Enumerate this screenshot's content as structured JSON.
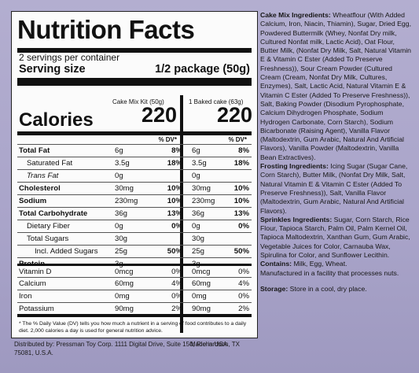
{
  "panel": {
    "title": "Nutrition Facts",
    "servings": "2 servings per container",
    "serving_size_label": "Serving size",
    "serving_size_value": "1/2 package (50g)",
    "col1_header": "Cake Mix Kit (50g)",
    "col2_header": "1 Baked cake (63g)",
    "calories_label": "Calories",
    "calories_col1": "220",
    "calories_col2": "220",
    "dv_header": "% DV*",
    "rows": [
      {
        "label": "Total Fat",
        "c1": "6g",
        "d1": "8%",
        "c2": "6g",
        "d2": "8%"
      },
      {
        "label": "Saturated Fat",
        "c1": "3.5g",
        "d1": "18%",
        "c2": "3.5g",
        "d2": "18%"
      },
      {
        "label": "Trans Fat",
        "c1": "0g",
        "d1": "",
        "c2": "0g",
        "d2": ""
      },
      {
        "label": "Cholesterol",
        "c1": "30mg",
        "d1": "10%",
        "c2": "30mg",
        "d2": "10%"
      },
      {
        "label": "Sodium",
        "c1": "230mg",
        "d1": "10%",
        "c2": "230mg",
        "d2": "10%"
      },
      {
        "label": "Total Carbohydrate",
        "c1": "36g",
        "d1": "13%",
        "c2": "36g",
        "d2": "13%"
      },
      {
        "label": "Dietary Fiber",
        "c1": "0g",
        "d1": "0%",
        "c2": "0g",
        "d2": "0%"
      },
      {
        "label": "Total Sugars",
        "c1": "30g",
        "d1": "",
        "c2": "30g",
        "d2": ""
      },
      {
        "label": "Incl. Added Sugars",
        "c1": "25g",
        "d1": "50%",
        "c2": "25g",
        "d2": "50%"
      },
      {
        "label": "Protein",
        "c1": "3g",
        "d1": "",
        "c2": "3g",
        "d2": ""
      },
      {
        "label": "Vitamin D",
        "c1": "0mcg",
        "d1": "0%",
        "c2": "0mcg",
        "d2": "0%"
      },
      {
        "label": "Calcium",
        "c1": "60mg",
        "d1": "4%",
        "c2": "60mg",
        "d2": "4%"
      },
      {
        "label": "Iron",
        "c1": "0mg",
        "d1": "0%",
        "c2": "0mg",
        "d2": "0%"
      },
      {
        "label": "Potassium",
        "c1": "90mg",
        "d1": "2%",
        "c2": "90mg",
        "d2": "2%"
      }
    ],
    "footnote": "* The % Daily Value (DV) tells you how much a nutrient in a serving of food contributes to a daily diet. 2,000 calories a day is used for general nutrition advice."
  },
  "distributed": "Distributed by: Pressman Toy Corp. 1111 Digital Drive, Suite 150, Richardson, TX 75081, U.S.A.",
  "made_in": "Made in USA",
  "ingredients": {
    "cake_head": "Cake Mix Ingredients:",
    "cake_body": "Wheatflour (With Added Calcium, Iron, Niacin, Thiamin), Sugar, Dried Egg, Powdered Buttermilk (Whey, Nonfat Dry milk, Cultured Nonfat milk, Lactic Acid), Oat Flour, Butter Milk, (Nonfat Dry Milk, Salt, Natural Vitamin E & Vitamin C Ester (Added To Preserve Freshness)), Sour Cream Powder (Cultured Cream (Cream, Nonfat Dry Milk, Cultures, Enzymes), Salt, Lactic Acid, Natural Vitamin E & Vitamin C Ester (Added To Preserve Freshness)), Salt, Baking Powder (Disodium Pyrophosphate, Calcium Dihydrogen Phosphate, Sodium Hydrogen Carbonate, Corn Starch), Sodium Bicarbonate (Raising Agent), Vanilla Flavor (Maltodextrin, Gum Arabic, Natural And Artificial Flavors), Vanilla Powder (Maltodextrin, Vanilla Bean Extractives).",
    "frosting_head": "Frosting Ingredients:",
    "frosting_body": "Icing Sugar (Sugar Cane, Corn Starch), Butter Milk, (Nonfat Dry Milk, Salt, Natural Vitamin E & Vitamin C Ester (Added To Preserve Freshness)), Salt, Vanilla Flavor (Maltodextrin, Gum Arabic, Natural And Artificial Flavors).",
    "sprinkles_head": "Sprinkles Ingredients:",
    "sprinkles_body": "Sugar, Corn Starch, Rice Flour, Tapioca Starch, Palm Oil, Palm Kernel Oil, Tapioca Maltodextrin, Xanthan Gum, Gum Arabic, Vegetable Juices for Color, Carnauba Wax, Spirulina for Color, and Sunflower Lecithin.",
    "contains_head": "Contains:",
    "contains_body": "Milk, Egg, Wheat.",
    "facility": "Manufactured in a facility that processes nuts.",
    "storage_head": "Storage:",
    "storage_body": "Store in a cool, dry place."
  }
}
